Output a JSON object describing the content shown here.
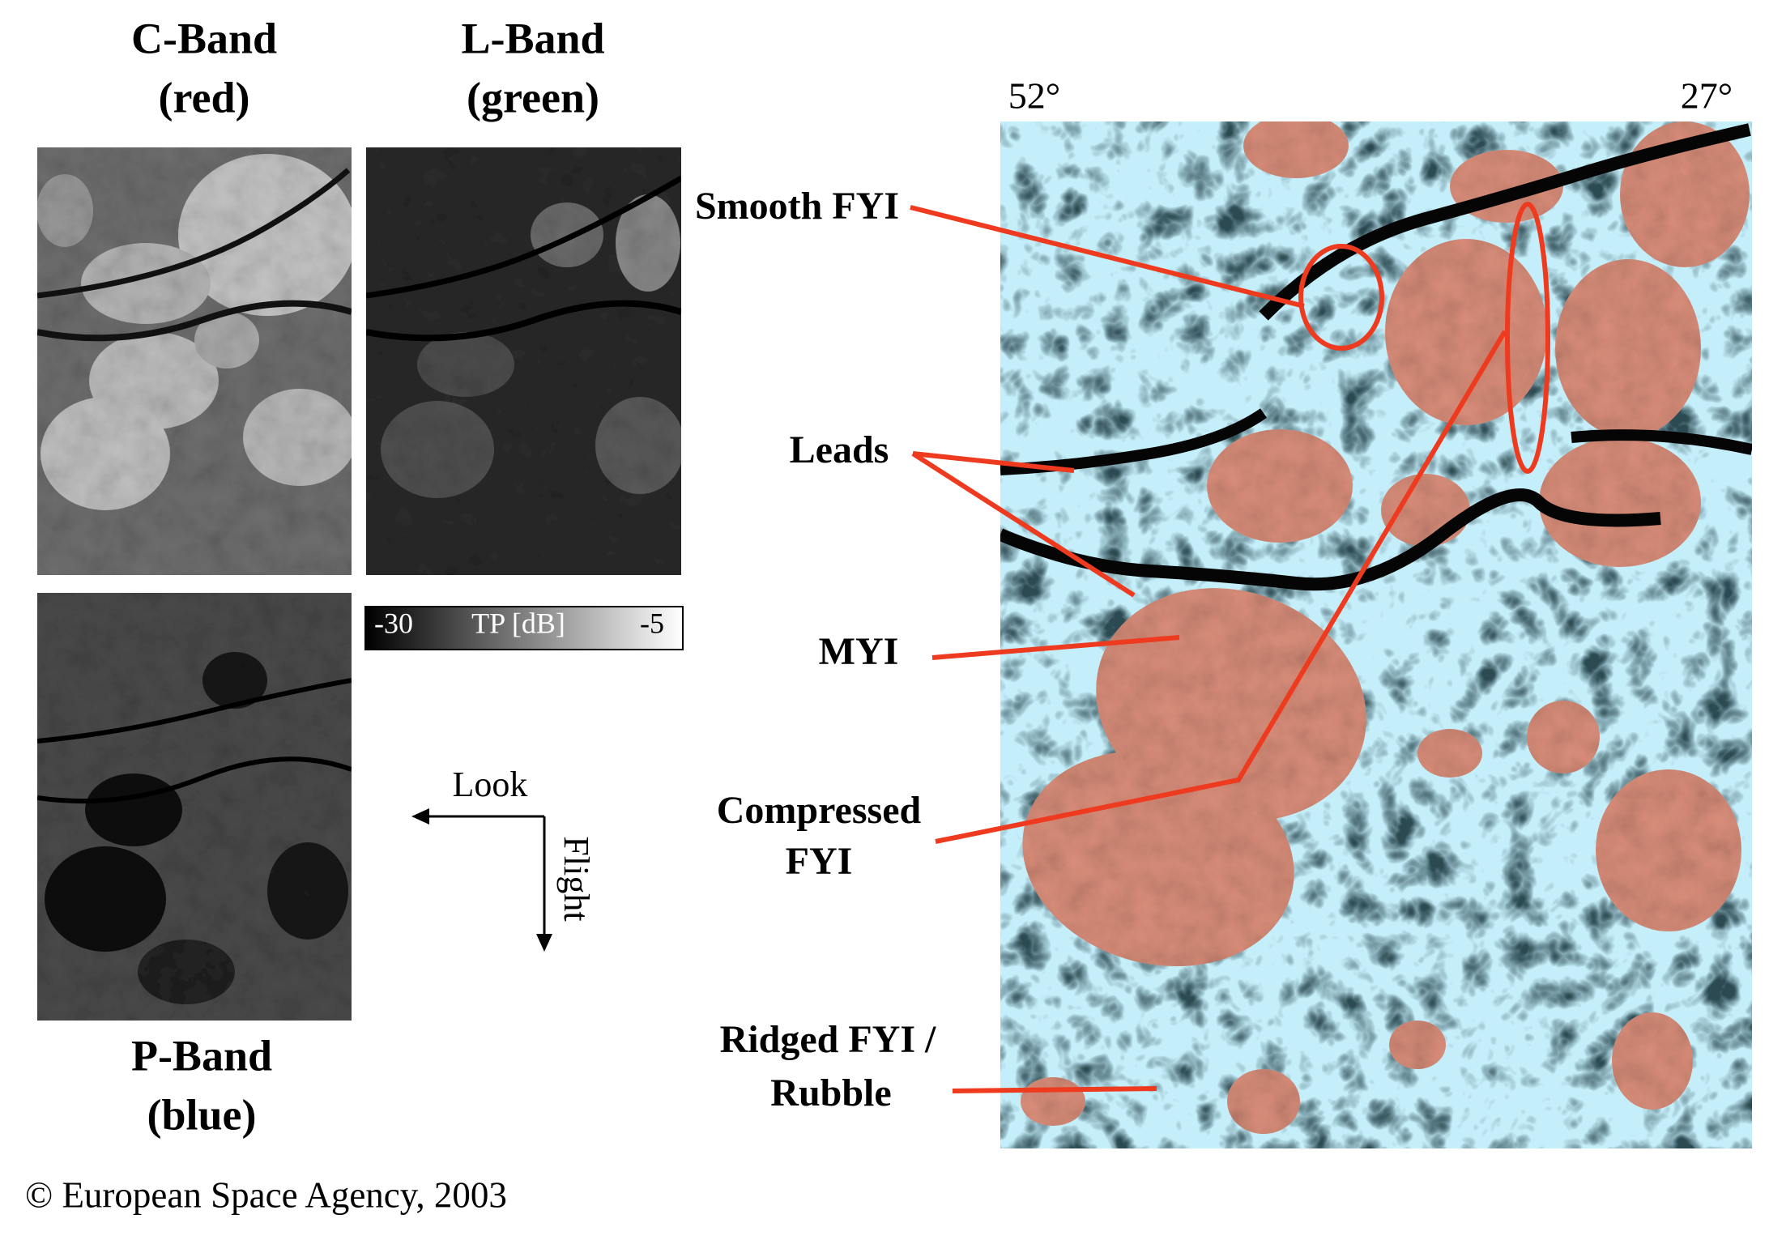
{
  "panels": {
    "c_band": {
      "title": "C-Band",
      "subtitle": "(red)"
    },
    "l_band": {
      "title": "L-Band",
      "subtitle": "(green)"
    },
    "p_band": {
      "title": "P-Band",
      "subtitle": "(blue)"
    }
  },
  "colorbar": {
    "min_label": "-30",
    "label": "TP [dB]",
    "max_label": "-5"
  },
  "orientation": {
    "look": "Look",
    "flight": "Flight"
  },
  "composite": {
    "left_angle": "52°",
    "right_angle": "27°"
  },
  "annotations": [
    {
      "lines": [
        "Smooth FYI"
      ]
    },
    {
      "lines": [
        "Leads"
      ]
    },
    {
      "lines": [
        "MYI"
      ]
    },
    {
      "lines": [
        "Compressed",
        "FYI"
      ]
    },
    {
      "lines": [
        "Ridged FYI /",
        "Rubble"
      ]
    }
  ],
  "footer": {
    "copyright": "© European Space Agency, 2003"
  }
}
